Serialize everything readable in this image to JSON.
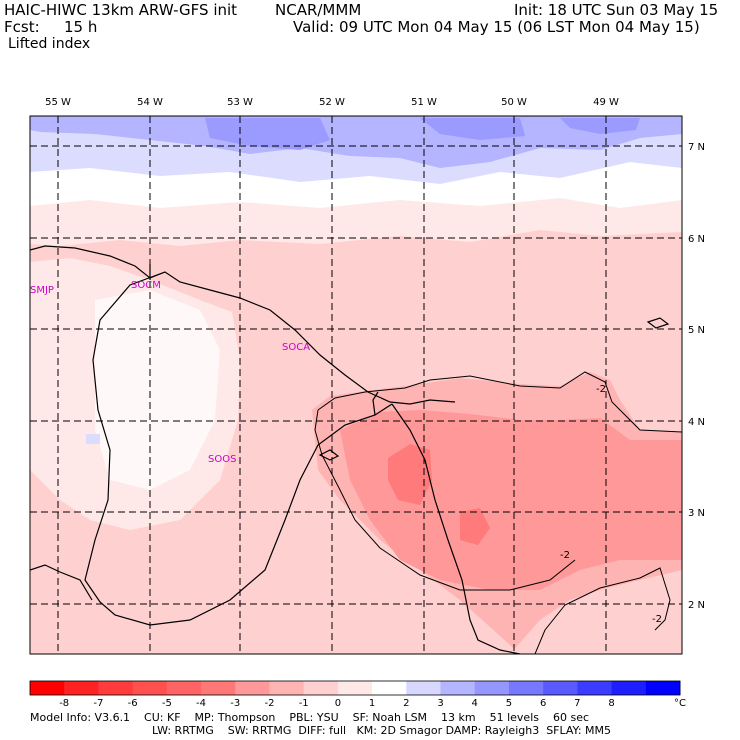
{
  "header": {
    "model": "HAIC-HIWC 13km ARW-GFS init",
    "org": "NCAR/MMM",
    "init": "Init: 18 UTC Sun 03 May 15",
    "fcst_label": "Fcst:",
    "fcst_value": "15 h",
    "valid": "Valid: 09 UTC Mon 04 May 15 (06 LST Mon 04 May 15)",
    "field": "Lifted index"
  },
  "map": {
    "lon_labels": [
      "55 W",
      "54 W",
      "53 W",
      "52 W",
      "51 W",
      "50 W",
      "49 W"
    ],
    "lat_labels": [
      "7 N",
      "6 N",
      "5 N",
      "4 N",
      "3 N",
      "2 N"
    ],
    "stations": [
      "SMJP",
      "SOCM",
      "SOCA",
      "SOOS"
    ],
    "contour_labels": [
      "-2",
      "-2",
      "-2"
    ],
    "colors": {
      "blue_light": "#dcdcff",
      "blue_mid": "#b4b4ff",
      "blue_dark": "#9a9aff",
      "white": "#ffffff",
      "pink_light": "#ffe8e8",
      "pink": "#ffd0d0",
      "salmon": "#ffb4b4",
      "red_mid": "#ff9898",
      "red_dark": "#ff7a7a"
    }
  },
  "colorbar": {
    "labels": [
      "-8",
      "-7",
      "-6",
      "-5",
      "-4",
      "-3",
      "-2",
      "-1",
      "0",
      "1",
      "2",
      "3",
      "4",
      "5",
      "6",
      "7",
      "8"
    ],
    "unit": "°C",
    "colors": [
      "#ff0000",
      "#ff2222",
      "#ff3c3c",
      "#ff5050",
      "#ff6464",
      "#ff7878",
      "#ff9898",
      "#ffb4b4",
      "#ffd0d0",
      "#ffe8e8",
      "#ffffff",
      "#d8d8ff",
      "#b4b4ff",
      "#9696ff",
      "#7878ff",
      "#5a5aff",
      "#3c3cff",
      "#1e1eff",
      "#0000ff"
    ]
  },
  "footer": {
    "line1": "Model Info: V3.6.1    CU: KF    MP: Thompson    PBL: YSU    SF: Noah LSM    13 km    51 levels    60 sec",
    "line2": "LW: RRTMG    SW: RRTMG  DIFF: full   KM: 2D Smagor DAMP: Rayleigh3  SFLAY: MM5"
  }
}
